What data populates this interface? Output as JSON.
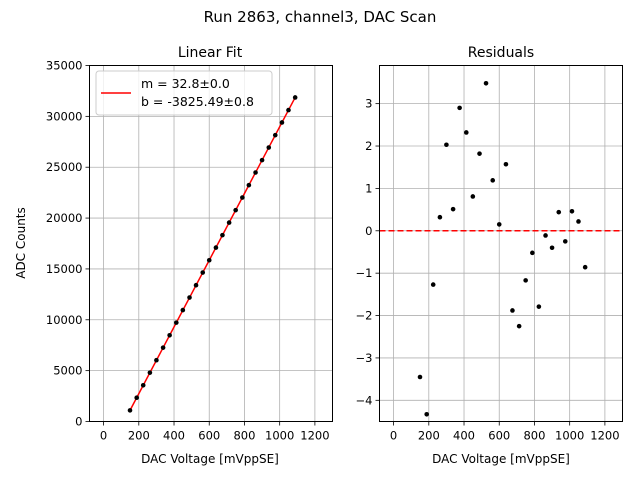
{
  "figure": {
    "suptitle": "Run 2863, channel3, DAC Scan"
  },
  "chart_data": [
    {
      "type": "scatter",
      "title": "Linear Fit",
      "xlabel": "DAC Voltage [mVppSE]",
      "ylabel": "ADC Counts",
      "xlim": [
        -80,
        1300
      ],
      "ylim": [
        0,
        35000
      ],
      "xticks": [
        0,
        200,
        400,
        600,
        800,
        1000,
        1200
      ],
      "yticks": [
        0,
        5000,
        10000,
        15000,
        20000,
        25000,
        30000,
        35000
      ],
      "grid": true,
      "legend": {
        "placement": "top-left",
        "line1": "m = 32.8±0.0",
        "line2": "b = -3825.49±0.8"
      },
      "fit": {
        "slope": 32.8,
        "intercept": -3825.49,
        "color": "#ff0000"
      },
      "points_color": "#000000",
      "x": [
        150,
        188,
        225,
        263,
        300,
        338,
        375,
        413,
        450,
        488,
        525,
        563,
        600,
        638,
        675,
        713,
        750,
        788,
        825,
        863,
        900,
        938,
        975,
        1013,
        1050,
        1088
      ],
      "y": [
        1094,
        2340,
        3558,
        4800,
        6026,
        7260,
        8478,
        9722,
        10955,
        12186,
        13398,
        14645,
        15854,
        17098,
        18318,
        19555,
        20776,
        22021,
        23235,
        24480,
        25697,
        26935,
        28152,
        29398,
        30616,
        31858
      ]
    },
    {
      "type": "scatter",
      "title": "Residuals",
      "xlabel": "DAC Voltage [mVppSE]",
      "ylabel": "",
      "xlim": [
        -80,
        1300
      ],
      "ylim": [
        -4.5,
        3.9
      ],
      "xticks": [
        0,
        200,
        400,
        600,
        800,
        1000,
        1200
      ],
      "yticks": [
        -4,
        -3,
        -2,
        -1,
        0,
        1,
        2,
        3
      ],
      "grid": true,
      "reference_line": {
        "y": 0,
        "style": "dashed",
        "color": "#ff0000"
      },
      "points_color": "#000000",
      "x": [
        150,
        188,
        225,
        263,
        300,
        338,
        375,
        413,
        450,
        488,
        525,
        563,
        600,
        638,
        675,
        713,
        750,
        788,
        825,
        863,
        900,
        938,
        975,
        1013,
        1050,
        1088
      ],
      "y": [
        -3.45,
        -4.33,
        -1.27,
        0.32,
        2.03,
        0.51,
        2.9,
        2.32,
        0.81,
        1.82,
        3.48,
        1.19,
        0.15,
        1.57,
        -1.88,
        -2.25,
        -1.17,
        -0.52,
        -1.79,
        -0.11,
        -0.4,
        0.44,
        -0.25,
        0.46,
        0.22,
        -0.86
      ]
    }
  ]
}
